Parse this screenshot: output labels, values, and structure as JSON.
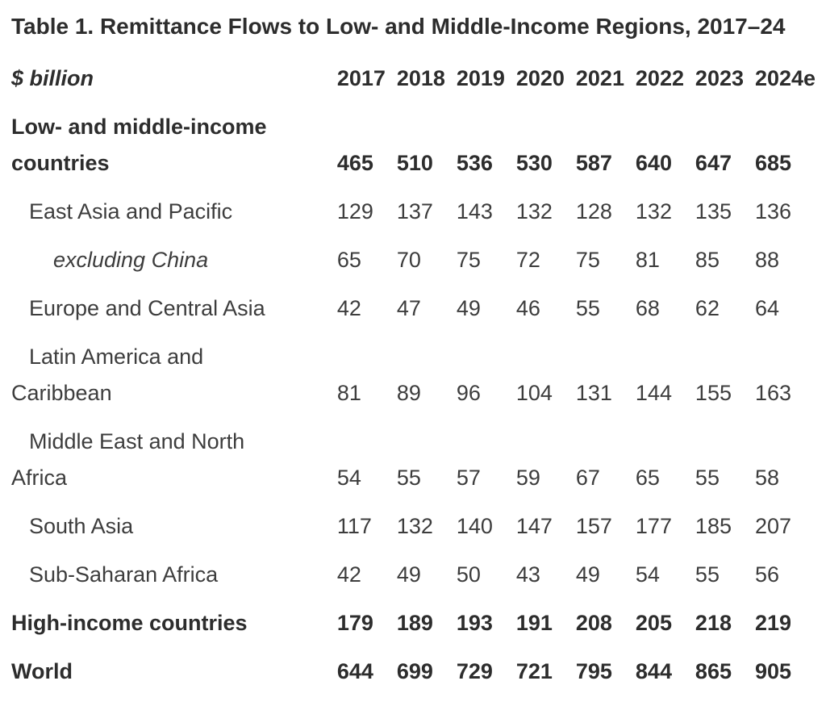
{
  "title": "Table 1. Remittance Flows to Low- and Middle-Income Regions, 2017–24",
  "table": {
    "unit_label": "$ billion",
    "years": [
      "2017",
      "2018",
      "2019",
      "2020",
      "2021",
      "2022",
      "2023",
      "2024e"
    ],
    "rows": [
      {
        "label": "Low- and middle-income\ncountries",
        "style": "bold",
        "indent": 0,
        "values": [
          465,
          510,
          536,
          530,
          587,
          640,
          647,
          685
        ]
      },
      {
        "label": "East Asia and Pacific",
        "style": "regular",
        "indent": 1,
        "values": [
          129,
          137,
          143,
          132,
          128,
          132,
          135,
          136
        ]
      },
      {
        "label": "excluding China",
        "style": "italic",
        "indent": 2,
        "values": [
          65,
          70,
          75,
          72,
          75,
          81,
          85,
          88
        ]
      },
      {
        "label": "Europe and Central Asia",
        "style": "regular",
        "indent": 1,
        "values": [
          42,
          47,
          49,
          46,
          55,
          68,
          62,
          64
        ]
      },
      {
        "label": "Latin America and\nCaribbean",
        "style": "regular",
        "indent": 1,
        "values": [
          81,
          89,
          96,
          104,
          131,
          144,
          155,
          163
        ]
      },
      {
        "label": "Middle East and North\nAfrica",
        "style": "regular",
        "indent": 1,
        "values": [
          54,
          55,
          57,
          59,
          67,
          65,
          55,
          58
        ]
      },
      {
        "label": "South Asia",
        "style": "regular",
        "indent": 1,
        "values": [
          117,
          132,
          140,
          147,
          157,
          177,
          185,
          207
        ]
      },
      {
        "label": "Sub-Saharan Africa",
        "style": "regular",
        "indent": 1,
        "values": [
          42,
          49,
          50,
          43,
          49,
          54,
          55,
          56
        ]
      },
      {
        "label": "High-income countries",
        "style": "bold",
        "indent": 0,
        "values": [
          179,
          189,
          193,
          191,
          208,
          205,
          218,
          219
        ]
      },
      {
        "label": "World",
        "style": "bold",
        "indent": 0,
        "values": [
          644,
          699,
          729,
          721,
          795,
          844,
          865,
          905
        ]
      }
    ]
  },
  "colors": {
    "background": "#ffffff",
    "text_regular": "#3d3d3d",
    "text_bold": "#2d2d2d"
  }
}
